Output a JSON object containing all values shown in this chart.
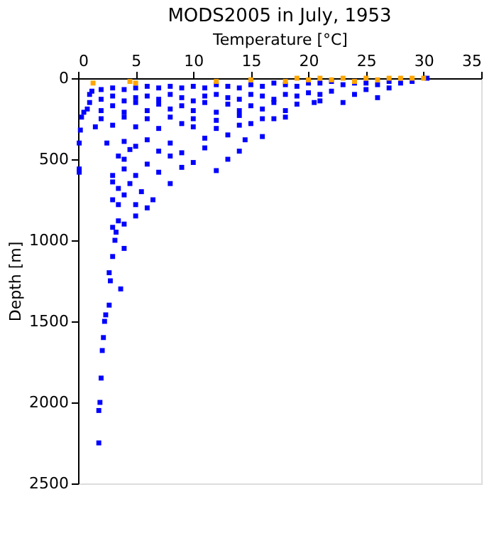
{
  "chart_data": {
    "type": "scatter",
    "title": "MODS2005 in July, 1953",
    "xlabel": "Temperature [°C]",
    "ylabel": "Depth [m]",
    "xlim": [
      0,
      35
    ],
    "xticks": [
      0,
      5,
      10,
      15,
      20,
      25,
      30,
      35
    ],
    "ylim": [
      2500,
      0
    ],
    "yticks": [
      0,
      500,
      1000,
      1500,
      2000,
      2500
    ],
    "marker": "square",
    "grid": false,
    "legend": false,
    "series": [
      {
        "color": "#0000ff",
        "x": [
          30.3,
          29,
          28,
          27,
          26,
          25,
          24,
          23,
          22,
          21,
          20,
          19,
          18,
          17,
          16,
          15,
          14,
          13,
          12,
          11,
          10,
          9,
          8,
          7,
          6,
          5,
          4,
          3,
          2,
          1.2,
          27,
          25,
          24,
          22,
          21,
          20,
          19,
          18,
          17,
          16,
          15,
          14,
          13,
          12,
          11,
          10,
          9,
          8,
          7,
          6,
          5,
          4,
          3,
          2,
          1,
          26,
          23,
          21,
          19,
          17,
          15,
          13,
          11,
          9,
          7,
          5,
          3,
          1,
          20.5,
          18,
          16,
          14,
          12,
          10,
          8,
          6,
          4,
          2,
          0.8,
          0.5,
          18,
          16,
          14,
          12,
          10,
          8,
          6,
          4,
          2,
          0.3,
          17,
          15,
          14,
          12,
          10,
          9,
          7,
          5,
          3,
          1.5,
          0.2,
          16,
          14.5,
          13,
          11,
          8,
          6,
          4,
          2.5,
          0.1,
          14,
          11,
          9,
          7,
          5,
          4.5,
          3.5,
          13,
          10,
          8,
          6,
          4,
          0.1,
          12,
          9,
          7,
          5,
          4,
          3,
          0.1,
          5.5,
          4.5,
          3.5,
          3,
          8,
          6.5,
          5,
          4,
          3.5,
          3,
          6,
          5,
          4,
          3.5,
          3,
          3.3,
          3.2,
          4,
          3,
          2.7,
          2.8,
          3.7,
          2.7,
          2.3,
          2.4,
          2.2,
          2.1,
          2,
          1.9,
          1.8,
          1.8
        ],
        "values": [
          0,
          20,
          30,
          20,
          40,
          30,
          30,
          40,
          20,
          30,
          30,
          50,
          40,
          30,
          50,
          40,
          60,
          50,
          40,
          60,
          50,
          60,
          50,
          60,
          50,
          60,
          70,
          60,
          70,
          80,
          60,
          70,
          100,
          80,
          100,
          90,
          110,
          100,
          130,
          110,
          100,
          130,
          120,
          100,
          110,
          140,
          120,
          100,
          130,
          110,
          120,
          140,
          110,
          130,
          100,
          120,
          150,
          140,
          160,
          150,
          170,
          160,
          150,
          170,
          160,
          150,
          170,
          150,
          150,
          200,
          190,
          200,
          210,
          200,
          190,
          200,
          210,
          200,
          190,
          210,
          240,
          250,
          230,
          260,
          250,
          240,
          250,
          240,
          250,
          240,
          250,
          280,
          290,
          310,
          300,
          280,
          310,
          300,
          290,
          300,
          320,
          360,
          380,
          350,
          370,
          400,
          380,
          390,
          400,
          400,
          450,
          430,
          460,
          450,
          420,
          440,
          480,
          500,
          520,
          480,
          530,
          500,
          560,
          570,
          550,
          580,
          600,
          560,
          600,
          580,
          700,
          650,
          680,
          640,
          650,
          750,
          780,
          720,
          780,
          750,
          800,
          850,
          900,
          880,
          920,
          950,
          1000,
          1050,
          1100,
          1200,
          1250,
          1300,
          1400,
          1500,
          1460,
          1600,
          1680,
          1850,
          2000,
          2050,
          2250
        ]
      },
      {
        "color": "#ffa500",
        "x": [
          1.3,
          4.5,
          5,
          12,
          15,
          18,
          19,
          20,
          21,
          22,
          23,
          24,
          25,
          26,
          27,
          28,
          29,
          30
        ],
        "values": [
          30,
          20,
          30,
          20,
          10,
          20,
          0,
          10,
          0,
          10,
          0,
          20,
          0,
          10,
          0,
          0,
          0,
          0
        ]
      }
    ]
  }
}
